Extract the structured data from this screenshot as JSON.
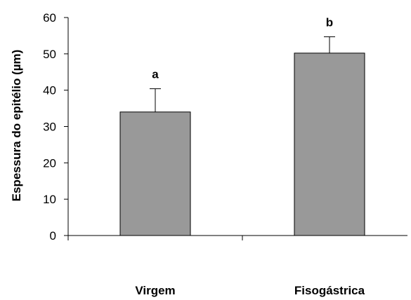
{
  "chart_data": {
    "type": "bar",
    "ylabel": "Espessura do epitélio (µm)",
    "ylim": [
      0,
      60
    ],
    "yticks": [
      0,
      10,
      20,
      30,
      40,
      50,
      60
    ],
    "categories": [
      "Virgem",
      "Fisogástrica"
    ],
    "values": [
      34,
      50.2
    ],
    "error_upper": [
      6.4,
      4.5
    ],
    "significance_letters": [
      "a",
      "b"
    ],
    "bar_color": "#999999",
    "grid": false,
    "legend": "none"
  }
}
